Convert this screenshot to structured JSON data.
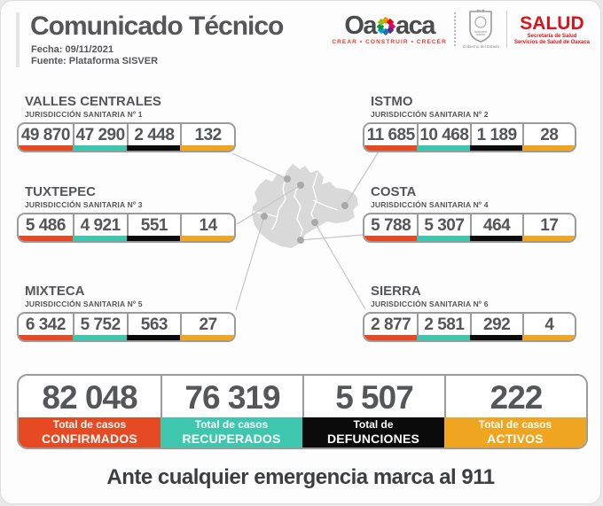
{
  "header": {
    "title": "Comunicado Técnico",
    "date_label": "Fecha: 09/11/2021",
    "source_label": "Fuente: Plataforma SISVER"
  },
  "logos": {
    "oaxaca_word_left": "Oa",
    "oaxaca_word_right": "aca",
    "oaxaca_tagline": "CREAR • CONSTRUIR • CRECER",
    "gov_caption": "Gobierno del Estado",
    "salud_title": "SALUD",
    "salud_sub1": "Secretaría de Salud",
    "salud_sub2": "Servicios de Salud de Oaxaca",
    "pinwheel_colors": [
      "#f39200",
      "#e30613",
      "#e5007e",
      "#662483",
      "#1d71b8",
      "#009fe3",
      "#009640",
      "#95c11f"
    ]
  },
  "colors": {
    "confirmed": "#e64a23",
    "recovered": "#3ec7ae",
    "deaths": "#0b0b0b",
    "active": "#efa51f"
  },
  "regions": [
    {
      "name": "VALLES CENTRALES",
      "jurisdiction": "JURISDICCIÓN SANITARIA Nº 1",
      "confirmed": "49 870",
      "recovered": "47 290",
      "deaths": "2 448",
      "active": "132"
    },
    {
      "name": "ISTMO",
      "jurisdiction": "JURISDICCIÓN SANITARIA Nº 2",
      "confirmed": "11 685",
      "recovered": "10 468",
      "deaths": "1 189",
      "active": "28"
    },
    {
      "name": "TUXTEPEC",
      "jurisdiction": "JURISDICCIÓN SANITARIA Nº 3",
      "confirmed": "5 486",
      "recovered": "4 921",
      "deaths": "551",
      "active": "14"
    },
    {
      "name": "COSTA",
      "jurisdiction": "JURISDICCIÓN SANITARIA Nº 4",
      "confirmed": "5 788",
      "recovered": "5 307",
      "deaths": "464",
      "active": "17"
    },
    {
      "name": "MIXTECA",
      "jurisdiction": "JURISDICCIÓN SANITARIA Nº 5",
      "confirmed": "6 342",
      "recovered": "5 752",
      "deaths": "563",
      "active": "27"
    },
    {
      "name": "SIERRA",
      "jurisdiction": "JURISDICCIÓN SANITARIA Nº 6",
      "confirmed": "2 877",
      "recovered": "2 581",
      "deaths": "292",
      "active": "4"
    }
  ],
  "totals": [
    {
      "value": "82 048",
      "line1": "Total de casos",
      "line2": "CONFIRMADOS"
    },
    {
      "value": "76 319",
      "line1": "Total de casos",
      "line2": "RECUPERADOS"
    },
    {
      "value": "5 507",
      "line1": "Total de",
      "line2": "DEFUNCIONES"
    },
    {
      "value": "222",
      "line1": "Total de casos",
      "line2": "ACTIVOS"
    }
  ],
  "footer": {
    "message": "Ante cualquier emergencia marca al 911"
  }
}
